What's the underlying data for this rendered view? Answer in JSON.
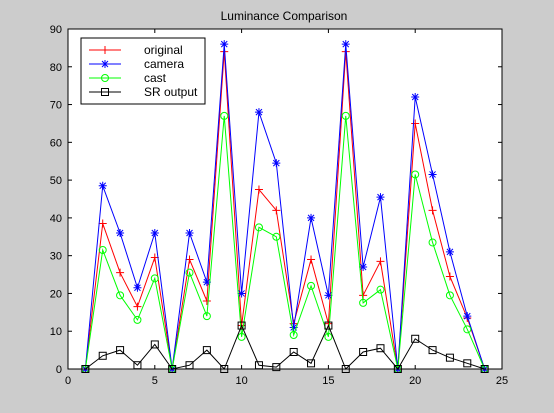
{
  "figure": {
    "background": "#cccccc",
    "axes_background": "#ffffff"
  },
  "chart_data": {
    "type": "line",
    "title": "Luminance Comparison",
    "xlabel": "",
    "ylabel": "",
    "xlim": [
      0,
      25
    ],
    "ylim": [
      0,
      90
    ],
    "xticks": [
      0,
      5,
      10,
      15,
      20,
      25
    ],
    "yticks": [
      0,
      10,
      20,
      30,
      40,
      50,
      60,
      70,
      80,
      90
    ],
    "grid": false,
    "legend_position": "top-left",
    "x": [
      1,
      2,
      3,
      4,
      5,
      6,
      7,
      8,
      9,
      10,
      11,
      12,
      13,
      14,
      15,
      16,
      17,
      18,
      19,
      20,
      21,
      22,
      23,
      24
    ],
    "series": [
      {
        "name": "original",
        "color": "#ff0000",
        "marker": "plus",
        "values": [
          0,
          38.5,
          25.5,
          16.5,
          29.5,
          0,
          29,
          18,
          84,
          11.5,
          47.5,
          42,
          12,
          29,
          12,
          84,
          19.5,
          28.5,
          0,
          65,
          42,
          24.5,
          13.5,
          0
        ]
      },
      {
        "name": "camera",
        "color": "#0000ff",
        "marker": "star",
        "values": [
          0,
          48.5,
          36,
          21.5,
          36,
          0,
          36,
          23,
          86,
          20,
          68,
          54.5,
          11,
          40,
          19.5,
          86,
          27,
          45.5,
          0,
          72,
          51.5,
          31,
          14,
          0
        ]
      },
      {
        "name": "cast",
        "color": "#00ff00",
        "marker": "circle",
        "values": [
          0,
          31.5,
          19.5,
          13,
          24,
          0,
          25.5,
          14,
          67,
          8.5,
          37.5,
          35,
          9,
          22,
          8.5,
          67,
          17.5,
          21,
          0,
          51.5,
          33.5,
          19.5,
          10.5,
          0
        ]
      },
      {
        "name": "SR output",
        "color": "#000000",
        "marker": "square",
        "values": [
          0,
          3.5,
          5,
          1,
          6.5,
          0,
          1,
          5,
          0,
          11.5,
          1,
          0.5,
          4.5,
          1.5,
          11.5,
          0,
          4.5,
          5.5,
          0,
          8,
          5,
          3,
          1.5,
          0
        ]
      }
    ]
  }
}
